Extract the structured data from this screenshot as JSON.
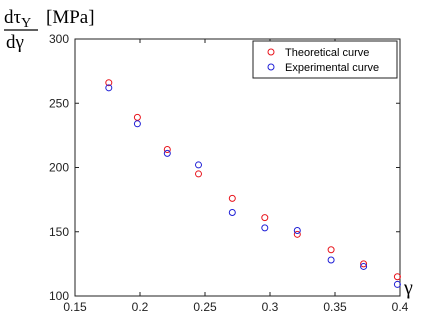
{
  "chart_data": {
    "type": "scatter",
    "ylabel_numerator": "dτ",
    "ylabel_numerator_sub": "Y",
    "ylabel_denominator": "dγ",
    "ylabel_unit": "[MPa]",
    "xlabel": "γ",
    "xlim": [
      0.15,
      0.4
    ],
    "ylim": [
      100,
      300
    ],
    "xticks": [
      "0.15",
      "0.2",
      "0.25",
      "0.3",
      "0.35",
      "0.4"
    ],
    "yticks": [
      "100",
      "150",
      "200",
      "250",
      "300"
    ],
    "xtick_values": [
      0.15,
      0.2,
      0.25,
      0.3,
      0.35,
      0.4
    ],
    "ytick_values": [
      100,
      150,
      200,
      250,
      300
    ],
    "grid": false,
    "legend_position": "top-right",
    "series": [
      {
        "name": "Theoretical curve",
        "color": "#e8141c",
        "marker": "open-circle",
        "x": [
          0.176,
          0.198,
          0.221,
          0.245,
          0.271,
          0.296,
          0.321,
          0.347,
          0.372,
          0.398
        ],
        "y": [
          266,
          239,
          214,
          195,
          176,
          161,
          148,
          136,
          125,
          115
        ]
      },
      {
        "name": "Experimental curve",
        "color": "#1f1fd6",
        "marker": "open-circle",
        "x": [
          0.176,
          0.198,
          0.221,
          0.245,
          0.271,
          0.296,
          0.321,
          0.347,
          0.372,
          0.398
        ],
        "y": [
          262,
          234,
          211,
          202,
          165,
          153,
          151,
          128,
          123,
          109
        ]
      }
    ]
  }
}
